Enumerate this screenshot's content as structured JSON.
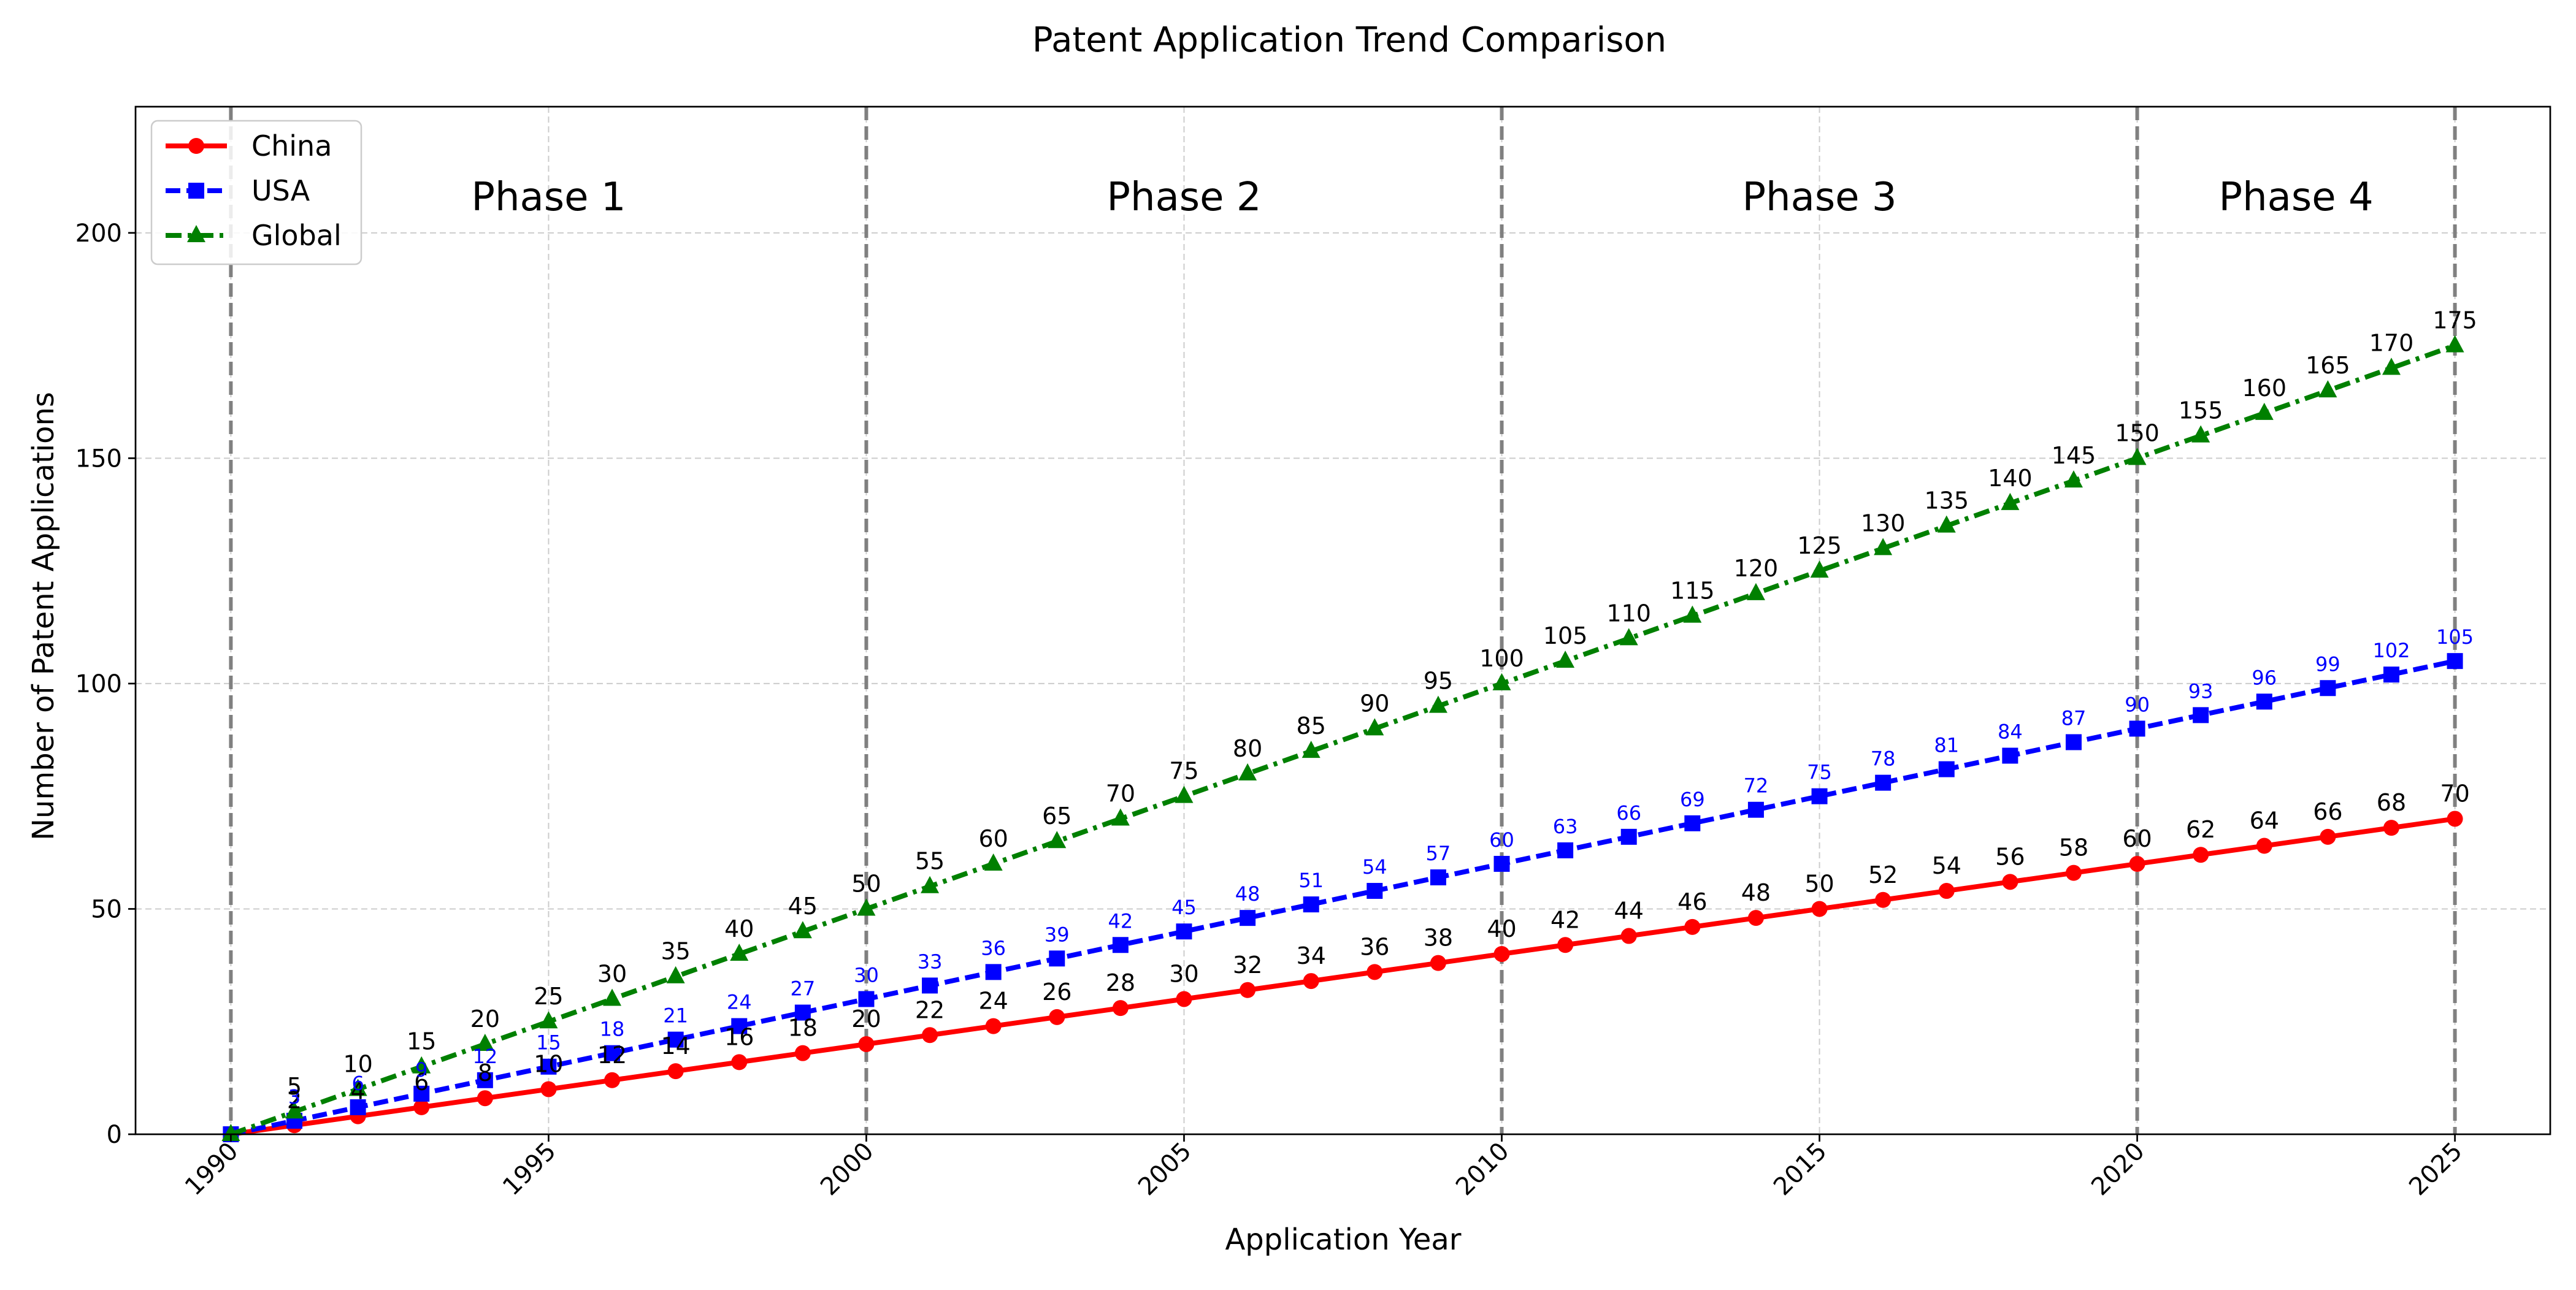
{
  "chart_data": {
    "type": "line",
    "title": "Patent Application Trend Comparison",
    "xlabel": "Application Year",
    "ylabel": "Number of Patent Applications",
    "xlim": [
      1988.5,
      2026.5
    ],
    "ylim": [
      0,
      228
    ],
    "x_ticks": [
      1990,
      1995,
      2000,
      2005,
      2010,
      2015,
      2020,
      2025
    ],
    "y_ticks": [
      0,
      50,
      100,
      150,
      200
    ],
    "grid": true,
    "legend_position": "top-left",
    "phase_lines": [
      1990,
      2000,
      2010,
      2020,
      2025
    ],
    "phases": [
      {
        "label": "Phase 1",
        "x": 1995
      },
      {
        "label": "Phase 2",
        "x": 2005
      },
      {
        "label": "Phase 3",
        "x": 2015
      },
      {
        "label": "Phase 4",
        "x": 2022.5
      }
    ],
    "phase_label_y": 205,
    "x": [
      1990,
      1991,
      1992,
      1993,
      1994,
      1995,
      1996,
      1997,
      1998,
      1999,
      2000,
      2001,
      2002,
      2003,
      2004,
      2005,
      2006,
      2007,
      2008,
      2009,
      2010,
      2011,
      2012,
      2013,
      2014,
      2015,
      2016,
      2017,
      2018,
      2019,
      2020,
      2021,
      2022,
      2023,
      2024,
      2025
    ],
    "series": [
      {
        "name": "China",
        "color": "#ff0000",
        "line_style": "solid",
        "marker": "circle",
        "label_color": "#000000",
        "values": [
          0,
          2,
          4,
          6,
          8,
          10,
          12,
          14,
          16,
          18,
          20,
          22,
          24,
          26,
          28,
          30,
          32,
          34,
          36,
          38,
          40,
          42,
          44,
          46,
          48,
          50,
          52,
          54,
          56,
          58,
          60,
          62,
          64,
          66,
          68,
          70
        ]
      },
      {
        "name": "USA",
        "color": "#0000ff",
        "line_style": "dashed",
        "marker": "square",
        "label_color": "#0000ff",
        "values": [
          0,
          3,
          6,
          9,
          12,
          15,
          18,
          21,
          24,
          27,
          30,
          33,
          36,
          39,
          42,
          45,
          48,
          51,
          54,
          57,
          60,
          63,
          66,
          69,
          72,
          75,
          78,
          81,
          84,
          87,
          90,
          93,
          96,
          99,
          102,
          105
        ]
      },
      {
        "name": "Global",
        "color": "#008000",
        "line_style": "dashdot",
        "marker": "triangle",
        "label_color": "#000000",
        "values": [
          0,
          5,
          10,
          15,
          20,
          25,
          30,
          35,
          40,
          45,
          50,
          55,
          60,
          65,
          70,
          75,
          80,
          85,
          90,
          95,
          100,
          105,
          110,
          115,
          120,
          125,
          130,
          135,
          140,
          145,
          150,
          155,
          160,
          165,
          170,
          175
        ]
      }
    ]
  }
}
